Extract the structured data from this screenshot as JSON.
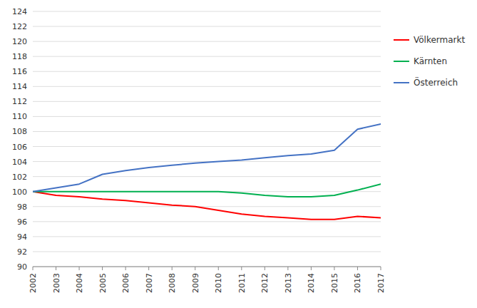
{
  "chart_data": {
    "type": "line",
    "x": [
      2002,
      2003,
      2004,
      2005,
      2006,
      2007,
      2008,
      2009,
      2010,
      2011,
      2012,
      2013,
      2014,
      2015,
      2016,
      2017
    ],
    "xlim": [
      2002,
      2017
    ],
    "xticks": [
      2002,
      2003,
      2004,
      2005,
      2006,
      2007,
      2008,
      2009,
      2010,
      2011,
      2012,
      2013,
      2014,
      2015,
      2016,
      2017
    ],
    "series": [
      {
        "name": "Völkermarkt",
        "color": "#ff0000",
        "values": [
          100.0,
          99.5,
          99.3,
          99.0,
          98.8,
          98.5,
          98.2,
          98.0,
          97.5,
          97.0,
          96.7,
          96.5,
          96.3,
          96.3,
          96.7,
          96.5
        ]
      },
      {
        "name": "Kärnten",
        "color": "#00b050",
        "values": [
          100.0,
          100.0,
          100.0,
          100.0,
          100.0,
          100.0,
          100.0,
          100.0,
          100.0,
          99.8,
          99.5,
          99.3,
          99.3,
          99.5,
          100.2,
          101.0
        ]
      },
      {
        "name": "Österreich",
        "color": "#4472c4",
        "values": [
          100.0,
          100.5,
          101.0,
          102.3,
          102.8,
          103.2,
          103.5,
          103.8,
          104.0,
          104.2,
          104.5,
          104.8,
          105.0,
          105.5,
          108.3,
          109.0
        ]
      }
    ],
    "ylim": [
      90,
      124
    ],
    "yticks": [
      90,
      92,
      94,
      96,
      98,
      100,
      102,
      104,
      106,
      108,
      110,
      112,
      114,
      116,
      118,
      120,
      122,
      124
    ],
    "grid": true,
    "legend": "right"
  }
}
